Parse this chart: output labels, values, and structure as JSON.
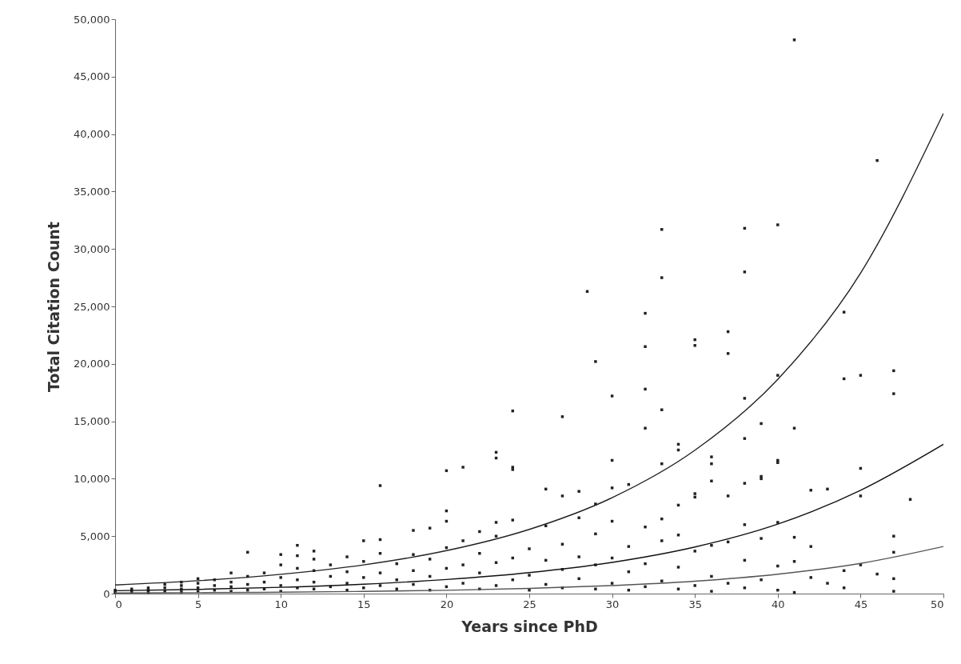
{
  "chart_data": {
    "type": "scatter",
    "xlabel": "Years since PhD",
    "ylabel": "Total Citation Count",
    "xlim": [
      0,
      50
    ],
    "ylim": [
      0,
      50000
    ],
    "xticks": [
      0,
      5,
      10,
      15,
      20,
      25,
      30,
      35,
      40,
      45,
      50
    ],
    "yticks": [
      0,
      {
        "value": 5000,
        "label": "5,000"
      },
      {
        "value": 10000,
        "label": "10,000"
      },
      {
        "value": 15000,
        "label": "15,000"
      },
      {
        "value": 20000,
        "label": "20,000"
      },
      {
        "value": 25000,
        "label": "25,000"
      },
      {
        "value": 30000,
        "label": "30,000"
      },
      {
        "value": 35000,
        "label": "35,000"
      },
      {
        "value": 40000,
        "label": "40,000"
      },
      {
        "value": 45000,
        "label": "45,000"
      },
      {
        "value": 50000,
        "label": "50,000"
      }
    ],
    "grid": false,
    "series": [
      {
        "color": "#222222",
        "marker": "square",
        "x": [
          0,
          0,
          1,
          1,
          2,
          2,
          2,
          3,
          3,
          3,
          4,
          4,
          4,
          4,
          5,
          5,
          5,
          5,
          6,
          6,
          6,
          7,
          7,
          7,
          7,
          8,
          8,
          8,
          8,
          9,
          9,
          9,
          10,
          10,
          10,
          10,
          10,
          11,
          11,
          11,
          11,
          11,
          12,
          12,
          12,
          12,
          12,
          13,
          13,
          13,
          14,
          14,
          14,
          14,
          15,
          15,
          15,
          15,
          16,
          16,
          16,
          16,
          16,
          17,
          17,
          17,
          18,
          18,
          18,
          18,
          19,
          19,
          19,
          19,
          20,
          20,
          20,
          20,
          20,
          20,
          21,
          21,
          21,
          21,
          22,
          22,
          22,
          22,
          23,
          23,
          23,
          23,
          23,
          23,
          24,
          24,
          24,
          24,
          24,
          24,
          25,
          25,
          25,
          26,
          26,
          26,
          26,
          27,
          27,
          27,
          27,
          27,
          28,
          28,
          28,
          28,
          28.5,
          29,
          29,
          29,
          29,
          29,
          30,
          30,
          30,
          30,
          30,
          30,
          31,
          31,
          31,
          31,
          32,
          32,
          32,
          32,
          32,
          32,
          32,
          33,
          33,
          33,
          33,
          33,
          33,
          33,
          34,
          34,
          34,
          34,
          34,
          34,
          35,
          35,
          35,
          35,
          35,
          35,
          36,
          36,
          36,
          36,
          36,
          36,
          37,
          37,
          37,
          37,
          37,
          38,
          38,
          38,
          38,
          38,
          38,
          38,
          38,
          39,
          39,
          39,
          39,
          39,
          40,
          40,
          40,
          40,
          40,
          40,
          40,
          41,
          41,
          41,
          41,
          41,
          42,
          42,
          42,
          43,
          43,
          44,
          44,
          44,
          44,
          45,
          45,
          45,
          45,
          46,
          46,
          47,
          47,
          47,
          47,
          47,
          47,
          48
        ],
        "values": [
          100,
          300,
          150,
          400,
          100,
          300,
          500,
          200,
          500,
          800,
          150,
          400,
          700,
          1000,
          200,
          500,
          900,
          1300,
          300,
          700,
          1200,
          200,
          600,
          1000,
          1800,
          300,
          800,
          1500,
          3600,
          400,
          1000,
          1800,
          200,
          700,
          1400,
          2500,
          3400,
          500,
          1200,
          2200,
          3300,
          4200,
          400,
          1000,
          2000,
          3000,
          3700,
          600,
          1500,
          2500,
          300,
          900,
          1900,
          3200,
          500,
          1400,
          2800,
          4600,
          700,
          1800,
          3500,
          4700,
          9400,
          400,
          1200,
          2600,
          800,
          2000,
          3400,
          5500,
          300,
          1500,
          3000,
          5700,
          600,
          2200,
          4000,
          6300,
          7200,
          10700,
          900,
          2500,
          4600,
          11000,
          400,
          1800,
          3500,
          5400,
          700,
          2700,
          5000,
          6200,
          11800,
          12300,
          1200,
          3100,
          6400,
          10800,
          11000,
          15900,
          300,
          1600,
          3900,
          800,
          2900,
          5900,
          9100,
          500,
          2100,
          4300,
          8500,
          15400,
          1300,
          3200,
          6600,
          8900,
          26300,
          400,
          2500,
          5200,
          7800,
          20200,
          900,
          3100,
          6300,
          9200,
          11600,
          17200,
          300,
          1900,
          4100,
          9500,
          600,
          2600,
          5800,
          14400,
          17800,
          21500,
          24400,
          1100,
          4600,
          6500,
          11300,
          16000,
          27500,
          31700,
          400,
          2300,
          5100,
          7700,
          12500,
          13000,
          700,
          3700,
          8400,
          8700,
          21600,
          22100,
          200,
          1500,
          4200,
          9800,
          11300,
          11900,
          900,
          4500,
          8500,
          20900,
          22800,
          500,
          2900,
          6000,
          9600,
          13500,
          17000,
          28000,
          31800,
          1200,
          4800,
          10000,
          10200,
          14800,
          300,
          2400,
          6200,
          11400,
          11600,
          19000,
          32100,
          100,
          2800,
          4900,
          14400,
          48200,
          1400,
          4100,
          9000,
          900,
          9100,
          500,
          2000,
          18700,
          24500,
          2500,
          8500,
          10900,
          19000,
          1700,
          37700,
          200,
          1300,
          3600,
          5000,
          17400,
          19400,
          8200
        ]
      },
      {
        "type": "line",
        "color": "#222222",
        "x": [
          0,
          5,
          10,
          15,
          20,
          25,
          30,
          35,
          40,
          45,
          50
        ],
        "values": [
          750,
          1120,
          1680,
          2500,
          3740,
          5590,
          8350,
          12480,
          18650,
          27900,
          41800
        ]
      },
      {
        "type": "line",
        "color": "#111111",
        "x": [
          0,
          5,
          10,
          15,
          20,
          25,
          30,
          35,
          40,
          45,
          50
        ],
        "values": [
          250,
          370,
          550,
          820,
          1230,
          1830,
          2720,
          4060,
          6050,
          9000,
          13000
        ]
      },
      {
        "type": "line",
        "color": "#555555",
        "x": [
          0,
          5,
          10,
          15,
          20,
          25,
          30,
          35,
          40,
          45,
          50
        ],
        "values": [
          50,
          80,
          120,
          190,
          290,
          450,
          700,
          1080,
          1690,
          2630,
          4100
        ]
      }
    ]
  }
}
